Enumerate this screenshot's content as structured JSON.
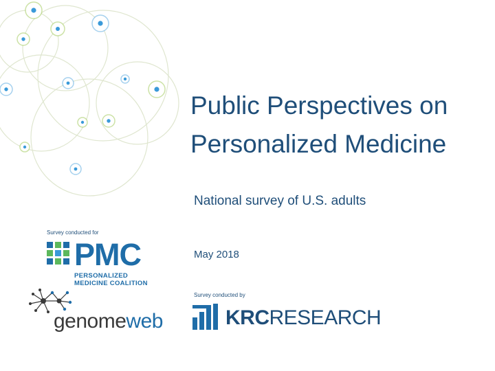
{
  "slide": {
    "title": "Public Perspectives on Personalized Medicine",
    "subtitle": "National survey of U.S. adults",
    "date": "May 2018",
    "conducted_for_label": "Survey conducted for",
    "conducted_by_label": "Survey conducted by"
  },
  "logos": {
    "pmc": {
      "name": "PMC",
      "subtitle_line1": "PERSONALIZED",
      "subtitle_line2": "MEDICINE COALITION"
    },
    "genomeweb": {
      "part1": "genome",
      "part2": "web"
    },
    "krc": {
      "part1": "KRC",
      "part2": "RESEARCH"
    }
  },
  "colors": {
    "title": "#1f4e79",
    "brand_blue": "#1f6da8",
    "accent_green": "#5cb85c",
    "decor_ring": "#dfe6cf",
    "decor_dot_blue": "#3a9ad9",
    "decor_dot_green": "#8dbf3a"
  }
}
